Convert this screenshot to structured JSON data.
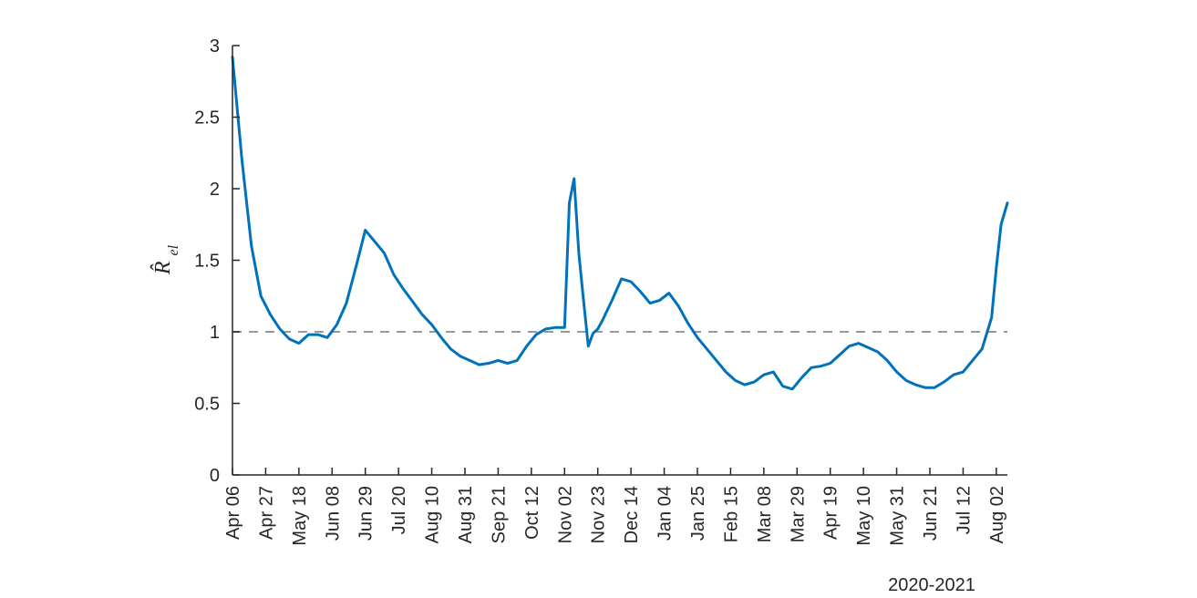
{
  "chart_data": {
    "type": "line",
    "title": "",
    "xlabel": "2020-2021",
    "ylabel": "R̂el",
    "ylabel_main": "R̂",
    "ylabel_sub": "el",
    "ylim": [
      0,
      3
    ],
    "yticks": [
      0,
      0.5,
      1,
      1.5,
      2,
      2.5,
      3
    ],
    "ytick_labels": [
      "0",
      "0.5",
      "1",
      "1.5",
      "2",
      "2.5",
      "3"
    ],
    "xlim": [
      "2020-04-06",
      "2021-08-09"
    ],
    "xtick_dates": [
      "2020-04-06",
      "2020-04-27",
      "2020-05-18",
      "2020-06-08",
      "2020-06-29",
      "2020-07-20",
      "2020-08-10",
      "2020-08-31",
      "2020-09-21",
      "2020-10-12",
      "2020-11-02",
      "2020-11-23",
      "2020-12-14",
      "2021-01-04",
      "2021-01-25",
      "2021-02-15",
      "2021-03-08",
      "2021-03-29",
      "2021-04-19",
      "2021-05-10",
      "2021-05-31",
      "2021-06-21",
      "2021-07-12",
      "2021-08-02"
    ],
    "xtick_labels": [
      "Apr 06",
      "Apr 27",
      "May 18",
      "Jun 08",
      "Jun 29",
      "Jul 20",
      "Aug 10",
      "Aug 31",
      "Sep 21",
      "Oct 12",
      "Nov 02",
      "Nov 23",
      "Dec 14",
      "Jan 04",
      "Jan 25",
      "Feb 15",
      "Mar 08",
      "Mar 29",
      "Apr 19",
      "May 10",
      "May 31",
      "Jun 21",
      "Jul 12",
      "Aug 02"
    ],
    "reference_line": {
      "y": 1,
      "style": "dashed",
      "color": "#999999"
    },
    "grid": false,
    "legend": "none",
    "series": [
      {
        "color": "#0072BD",
        "x": [
          "2020-04-06",
          "2020-04-12",
          "2020-04-18",
          "2020-04-24",
          "2020-04-30",
          "2020-05-06",
          "2020-05-12",
          "2020-05-18",
          "2020-05-24",
          "2020-05-30",
          "2020-06-05",
          "2020-06-11",
          "2020-06-17",
          "2020-06-23",
          "2020-06-29",
          "2020-07-05",
          "2020-07-11",
          "2020-07-17",
          "2020-07-23",
          "2020-07-29",
          "2020-08-04",
          "2020-08-10",
          "2020-08-16",
          "2020-08-22",
          "2020-08-28",
          "2020-09-03",
          "2020-09-09",
          "2020-09-15",
          "2020-09-21",
          "2020-09-27",
          "2020-10-03",
          "2020-10-09",
          "2020-10-15",
          "2020-10-21",
          "2020-10-27",
          "2020-11-02",
          "2020-11-05",
          "2020-11-08",
          "2020-11-11",
          "2020-11-14",
          "2020-11-17",
          "2020-11-20",
          "2020-11-23",
          "2020-11-26",
          "2020-12-02",
          "2020-12-08",
          "2020-12-14",
          "2020-12-20",
          "2020-12-26",
          "2021-01-01",
          "2021-01-07",
          "2021-01-13",
          "2021-01-19",
          "2021-01-25",
          "2021-01-31",
          "2021-02-06",
          "2021-02-12",
          "2021-02-18",
          "2021-02-24",
          "2021-03-02",
          "2021-03-08",
          "2021-03-14",
          "2021-03-20",
          "2021-03-26",
          "2021-04-01",
          "2021-04-07",
          "2021-04-13",
          "2021-04-19",
          "2021-04-25",
          "2021-05-01",
          "2021-05-07",
          "2021-05-13",
          "2021-05-19",
          "2021-05-25",
          "2021-05-31",
          "2021-06-06",
          "2021-06-12",
          "2021-06-18",
          "2021-06-24",
          "2021-06-30",
          "2021-07-06",
          "2021-07-12",
          "2021-07-18",
          "2021-07-24",
          "2021-07-30",
          "2021-08-02",
          "2021-08-05",
          "2021-08-09"
        ],
        "y": [
          2.92,
          2.2,
          1.6,
          1.25,
          1.12,
          1.02,
          0.95,
          0.92,
          0.98,
          0.98,
          0.96,
          1.05,
          1.2,
          1.45,
          1.71,
          1.63,
          1.55,
          1.4,
          1.3,
          1.21,
          1.12,
          1.05,
          0.96,
          0.88,
          0.83,
          0.8,
          0.77,
          0.78,
          0.8,
          0.78,
          0.8,
          0.9,
          0.98,
          1.02,
          1.03,
          1.03,
          1.9,
          2.07,
          1.55,
          1.22,
          0.9,
          0.99,
          1.02,
          1.08,
          1.22,
          1.37,
          1.35,
          1.28,
          1.2,
          1.22,
          1.27,
          1.18,
          1.06,
          0.96,
          0.88,
          0.8,
          0.72,
          0.66,
          0.63,
          0.65,
          0.7,
          0.72,
          0.62,
          0.6,
          0.68,
          0.75,
          0.76,
          0.78,
          0.84,
          0.9,
          0.92,
          0.89,
          0.86,
          0.8,
          0.72,
          0.66,
          0.63,
          0.61,
          0.61,
          0.65,
          0.7,
          0.72,
          0.8,
          0.88,
          1.1,
          1.45,
          1.75,
          1.9
        ]
      }
    ]
  }
}
